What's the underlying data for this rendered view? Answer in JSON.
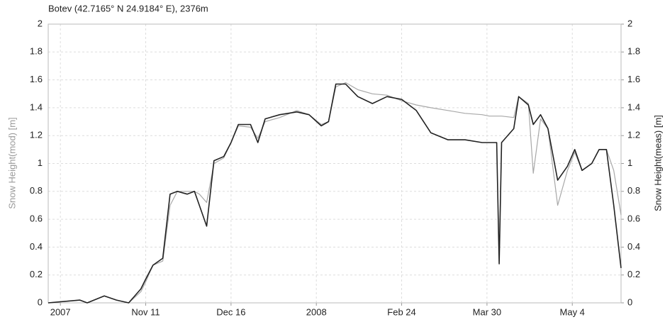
{
  "chart_data": {
    "type": "line",
    "title": "Botev (42.7165° N 24.9184° E), 2376m",
    "ylabel": "Snow Height(mod) [m]",
    "y2label": "Snow Height(meas) [m]",
    "x": [
      "2007-10-02",
      "2007-10-15",
      "2007-10-18",
      "2007-10-25",
      "2007-10-30",
      "2007-11-04",
      "2007-11-09",
      "2007-11-11",
      "2007-11-14",
      "2007-11-18",
      "2007-11-21",
      "2007-11-24",
      "2007-11-28",
      "2007-12-01",
      "2007-12-03",
      "2007-12-06",
      "2007-12-09",
      "2007-12-13",
      "2007-12-16",
      "2007-12-19",
      "2007-12-24",
      "2007-12-27",
      "2007-12-30",
      "2008-01-05",
      "2008-01-12",
      "2008-01-17",
      "2008-01-22",
      "2008-01-25",
      "2008-01-28",
      "2008-02-01",
      "2008-02-06",
      "2008-02-12",
      "2008-02-18",
      "2008-02-24",
      "2008-03-01",
      "2008-03-07",
      "2008-03-14",
      "2008-03-21",
      "2008-03-28",
      "2008-03-31",
      "2008-04-03",
      "2008-04-04",
      "2008-04-05",
      "2008-04-10",
      "2008-04-12",
      "2008-04-16",
      "2008-04-18",
      "2008-04-21",
      "2008-04-24",
      "2008-04-28",
      "2008-05-02",
      "2008-05-05",
      "2008-05-08",
      "2008-05-12",
      "2008-05-15",
      "2008-05-18",
      "2008-05-21",
      "2008-05-24"
    ],
    "series": [
      {
        "name": "Snow Height(mod)",
        "color": "#a8a8a8",
        "axis": "y",
        "values": [
          0,
          0.02,
          0,
          0.05,
          0.02,
          0,
          0.08,
          0.15,
          0.27,
          0.3,
          0.7,
          0.8,
          0.8,
          0.8,
          0.78,
          0.72,
          1.0,
          1.04,
          1.15,
          1.27,
          1.26,
          1.18,
          1.3,
          1.33,
          1.38,
          1.35,
          1.28,
          1.3,
          1.55,
          1.58,
          1.53,
          1.5,
          1.49,
          1.45,
          1.42,
          1.4,
          1.38,
          1.36,
          1.35,
          1.34,
          1.34,
          1.34,
          1.34,
          1.33,
          1.48,
          1.43,
          0.93,
          1.32,
          1.25,
          0.7,
          0.95,
          1.08,
          0.95,
          1.0,
          1.1,
          1.1,
          0.95,
          0.63
        ]
      },
      {
        "name": "Snow Height(meas)",
        "color": "#222222",
        "axis": "y2",
        "values": [
          0,
          0.02,
          0,
          0.05,
          0.02,
          0,
          0.1,
          0.17,
          0.27,
          0.32,
          0.78,
          0.8,
          0.78,
          0.8,
          0.7,
          0.55,
          1.02,
          1.05,
          1.15,
          1.28,
          1.28,
          1.15,
          1.32,
          1.35,
          1.37,
          1.35,
          1.27,
          1.3,
          1.57,
          1.57,
          1.48,
          1.43,
          1.48,
          1.46,
          1.38,
          1.22,
          1.17,
          1.17,
          1.15,
          1.15,
          1.15,
          0.28,
          1.15,
          1.25,
          1.48,
          1.42,
          1.28,
          1.35,
          1.25,
          0.88,
          0.98,
          1.1,
          0.95,
          1.0,
          1.1,
          1.1,
          0.7,
          0.25
        ]
      }
    ],
    "xlim": [
      "2007-10-02",
      "2008-05-24"
    ],
    "xticks": [
      {
        "value": "2007-10-07",
        "label": "2007"
      },
      {
        "value": "2007-11-11",
        "label": "Nov 11"
      },
      {
        "value": "2007-12-16",
        "label": "Dec 16"
      },
      {
        "value": "2008-01-20",
        "label": "2008"
      },
      {
        "value": "2008-02-24",
        "label": "Feb 24"
      },
      {
        "value": "2008-03-30",
        "label": "Mar 30"
      },
      {
        "value": "2008-05-04",
        "label": "May 4"
      }
    ],
    "ylim": [
      0,
      2
    ],
    "yticks": [
      0,
      0.2,
      0.4,
      0.6,
      0.8,
      1,
      1.2,
      1.4,
      1.6,
      1.8,
      2
    ],
    "y2lim": [
      0,
      2
    ],
    "y2ticks": [
      0,
      0.2,
      0.4,
      0.6,
      0.8,
      1,
      1.2,
      1.4,
      1.6,
      1.8,
      2
    ],
    "grid": true
  }
}
